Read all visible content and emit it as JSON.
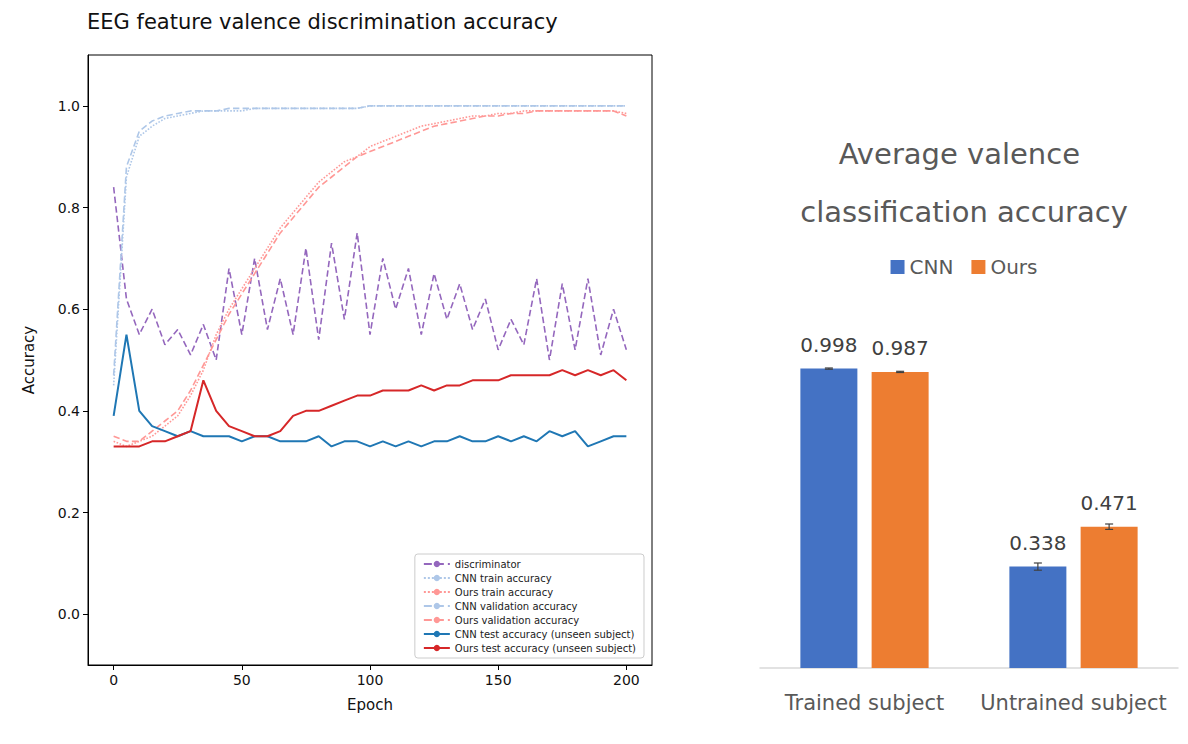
{
  "chart_data": [
    {
      "type": "line",
      "title": "EEG feature valence discrimination accuracy",
      "x_label": "Epoch",
      "y_label": "Accuracy",
      "x": [
        0,
        5,
        10,
        15,
        20,
        25,
        30,
        35,
        40,
        45,
        50,
        55,
        60,
        65,
        70,
        75,
        80,
        85,
        90,
        95,
        100,
        105,
        110,
        115,
        120,
        125,
        130,
        135,
        140,
        145,
        150,
        155,
        160,
        165,
        170,
        175,
        180,
        185,
        190,
        195,
        200
      ],
      "xlim": [
        -10,
        210
      ],
      "xticks": [
        0,
        50,
        100,
        150,
        200
      ],
      "ylim": [
        -0.1,
        1.1
      ],
      "yticks": [
        {
          "value": 0,
          "label": "0.0"
        },
        0.2,
        0.4,
        0.6,
        0.8,
        {
          "value": 1,
          "label": "1.0"
        }
      ],
      "grid": false,
      "legend": "lower right",
      "series": [
        {
          "name": "discriminator",
          "color": "#9467bd",
          "line_style": "dashed",
          "values": [
            0.84,
            0.62,
            0.55,
            0.6,
            0.53,
            0.56,
            0.51,
            0.57,
            0.5,
            0.68,
            0.55,
            0.7,
            0.56,
            0.66,
            0.55,
            0.72,
            0.54,
            0.73,
            0.58,
            0.75,
            0.55,
            0.7,
            0.6,
            0.68,
            0.55,
            0.67,
            0.58,
            0.65,
            0.56,
            0.62,
            0.52,
            0.58,
            0.53,
            0.66,
            0.5,
            0.65,
            0.52,
            0.66,
            0.51,
            0.6,
            0.52
          ]
        },
        {
          "name": "CNN train accuracy",
          "color": "#aec7e8",
          "line_style": "dotted",
          "values": [
            0.45,
            0.86,
            0.94,
            0.96,
            0.975,
            0.98,
            0.985,
            0.99,
            0.99,
            0.99,
            0.99,
            0.995,
            0.995,
            0.995,
            0.995,
            0.995,
            0.995,
            0.995,
            0.995,
            0.995,
            1,
            1,
            1,
            1,
            1,
            1,
            1,
            1,
            1,
            1,
            1,
            1,
            1,
            1,
            1,
            1,
            1,
            1,
            1,
            1,
            1
          ]
        },
        {
          "name": "Ours train accuracy",
          "color": "#ff9896",
          "line_style": "dotted",
          "values": [
            0.34,
            0.33,
            0.34,
            0.35,
            0.37,
            0.39,
            0.43,
            0.48,
            0.55,
            0.6,
            0.64,
            0.68,
            0.72,
            0.76,
            0.79,
            0.82,
            0.85,
            0.87,
            0.89,
            0.9,
            0.92,
            0.93,
            0.94,
            0.95,
            0.96,
            0.965,
            0.97,
            0.975,
            0.98,
            0.98,
            0.985,
            0.985,
            0.99,
            0.99,
            0.99,
            0.99,
            0.99,
            0.99,
            0.99,
            0.99,
            0.985
          ]
        },
        {
          "name": "CNN validation accuracy",
          "color": "#aec7e8",
          "line_style": "dashed",
          "values": [
            0.47,
            0.88,
            0.95,
            0.97,
            0.98,
            0.985,
            0.99,
            0.99,
            0.99,
            0.995,
            0.995,
            0.995,
            0.995,
            0.995,
            0.995,
            0.995,
            0.995,
            0.995,
            0.995,
            0.995,
            1,
            1,
            1,
            1,
            1,
            1,
            1,
            1,
            1,
            1,
            1,
            1,
            1,
            1,
            1,
            1,
            1,
            1,
            1,
            1,
            1
          ]
        },
        {
          "name": "Ours validation accuracy",
          "color": "#ff9896",
          "line_style": "dashed",
          "values": [
            0.35,
            0.34,
            0.34,
            0.36,
            0.38,
            0.4,
            0.44,
            0.49,
            0.54,
            0.59,
            0.63,
            0.67,
            0.71,
            0.75,
            0.78,
            0.81,
            0.84,
            0.86,
            0.88,
            0.9,
            0.91,
            0.92,
            0.93,
            0.94,
            0.95,
            0.96,
            0.965,
            0.97,
            0.975,
            0.98,
            0.98,
            0.985,
            0.985,
            0.99,
            0.99,
            0.99,
            0.99,
            0.99,
            0.99,
            0.99,
            0.98
          ]
        },
        {
          "name": "CNN test accuracy (unseen subject)",
          "color": "#1f77b4",
          "line_style": "solid",
          "values": [
            0.39,
            0.55,
            0.4,
            0.37,
            0.36,
            0.35,
            0.36,
            0.35,
            0.35,
            0.35,
            0.34,
            0.35,
            0.35,
            0.34,
            0.34,
            0.34,
            0.35,
            0.33,
            0.34,
            0.34,
            0.33,
            0.34,
            0.33,
            0.34,
            0.33,
            0.34,
            0.34,
            0.35,
            0.34,
            0.34,
            0.35,
            0.34,
            0.35,
            0.34,
            0.36,
            0.35,
            0.36,
            0.33,
            0.34,
            0.35,
            0.35
          ]
        },
        {
          "name": "Ours test accuracy (unseen subject)",
          "color": "#d62728",
          "line_style": "solid",
          "values": [
            0.33,
            0.33,
            0.33,
            0.34,
            0.34,
            0.35,
            0.36,
            0.46,
            0.4,
            0.37,
            0.36,
            0.35,
            0.35,
            0.36,
            0.39,
            0.4,
            0.4,
            0.41,
            0.42,
            0.43,
            0.43,
            0.44,
            0.44,
            0.44,
            0.45,
            0.44,
            0.45,
            0.45,
            0.46,
            0.46,
            0.46,
            0.47,
            0.47,
            0.47,
            0.47,
            0.48,
            0.47,
            0.48,
            0.47,
            0.48,
            0.46
          ]
        }
      ]
    },
    {
      "type": "bar",
      "title": "Average valence classification accuracy",
      "categories": [
        "Trained subject",
        "Untrained subject"
      ],
      "ylim": [
        0,
        1
      ],
      "legend": "top",
      "data_labels": true,
      "tick_labels": "x",
      "grid": false,
      "series": [
        {
          "name": "CNN",
          "color": "#4472c4",
          "values": [
            0.998,
            0.338
          ],
          "errors": [
            0.002,
            0.012
          ]
        },
        {
          "name": "Ours",
          "color": "#ed7d31",
          "values": [
            0.987,
            0.471
          ],
          "errors": [
            0.002,
            0.009
          ]
        }
      ]
    }
  ]
}
